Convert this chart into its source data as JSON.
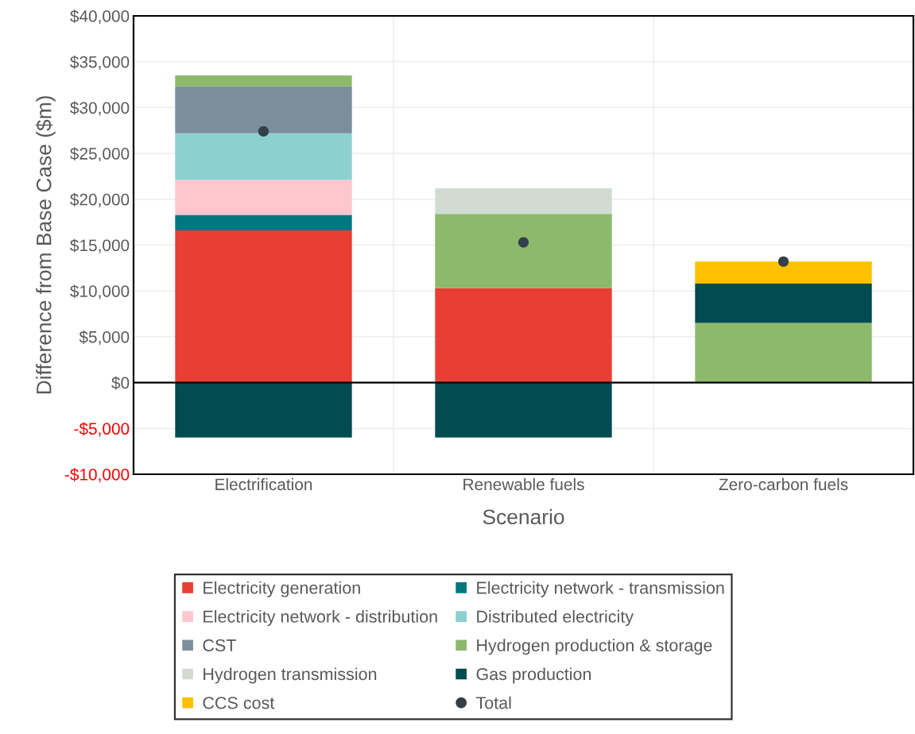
{
  "chart_data": {
    "type": "bar",
    "stacked": true,
    "xlabel": "Scenario",
    "ylabel": "Difference from Base Case ($m)",
    "categories": [
      "Electrification",
      "Renewable fuels",
      "Zero-carbon fuels"
    ],
    "series": [
      {
        "name": "Electricity generation",
        "color": "#e83e33",
        "values": [
          16600,
          10300,
          null
        ]
      },
      {
        "name": "Electricity network - transmission",
        "color": "#007681",
        "values": [
          1700,
          null,
          null
        ]
      },
      {
        "name": "Electricity network - distribution",
        "color": "#fec6cd",
        "values": [
          3800,
          null,
          null
        ]
      },
      {
        "name": "Distributed electricity",
        "color": "#8dd0d1",
        "values": [
          5100,
          null,
          null
        ]
      },
      {
        "name": "CST",
        "color": "#7c8e9b",
        "values": [
          5100,
          null,
          null
        ]
      },
      {
        "name": "Hydrogen production & storage",
        "color": "#8cb96b",
        "values": [
          1200,
          8100,
          6500
        ]
      },
      {
        "name": "Hydrogen transmission",
        "color": "#d1dbd2",
        "values": [
          null,
          2800,
          null
        ]
      },
      {
        "name": "Gas production",
        "color": "#024b51",
        "values": [
          -6000,
          -6000,
          4300
        ]
      },
      {
        "name": "CCS cost",
        "color": "#ffc000",
        "values": [
          null,
          null,
          2400
        ]
      },
      {
        "name": "Total",
        "type": "scatter",
        "color": "#343f48",
        "x": [
          "Electrification",
          "Renewable fuels",
          "Zero-carbon fuels"
        ],
        "values": [
          27400,
          15300,
          13200
        ]
      }
    ],
    "ylim": [
      -10000,
      40000
    ],
    "yticks": [
      {
        "value": -10000,
        "label": "-$10,000"
      },
      {
        "value": -5000,
        "label": "-$5,000"
      },
      {
        "value": 0,
        "label": "$0"
      },
      {
        "value": 5000,
        "label": "$5,000"
      },
      {
        "value": 10000,
        "label": "$10,000"
      },
      {
        "value": 15000,
        "label": "$15,000"
      },
      {
        "value": 20000,
        "label": "$20,000"
      },
      {
        "value": 25000,
        "label": "$25,000"
      },
      {
        "value": 30000,
        "label": "$30,000"
      },
      {
        "value": 35000,
        "label": "$35,000"
      },
      {
        "value": 40000,
        "label": "$40,000"
      }
    ],
    "ref_lines": [
      {
        "axis": "y",
        "value": 0,
        "color": "#000000"
      }
    ],
    "grid": true,
    "legend": "bottom",
    "marker": "circle"
  }
}
